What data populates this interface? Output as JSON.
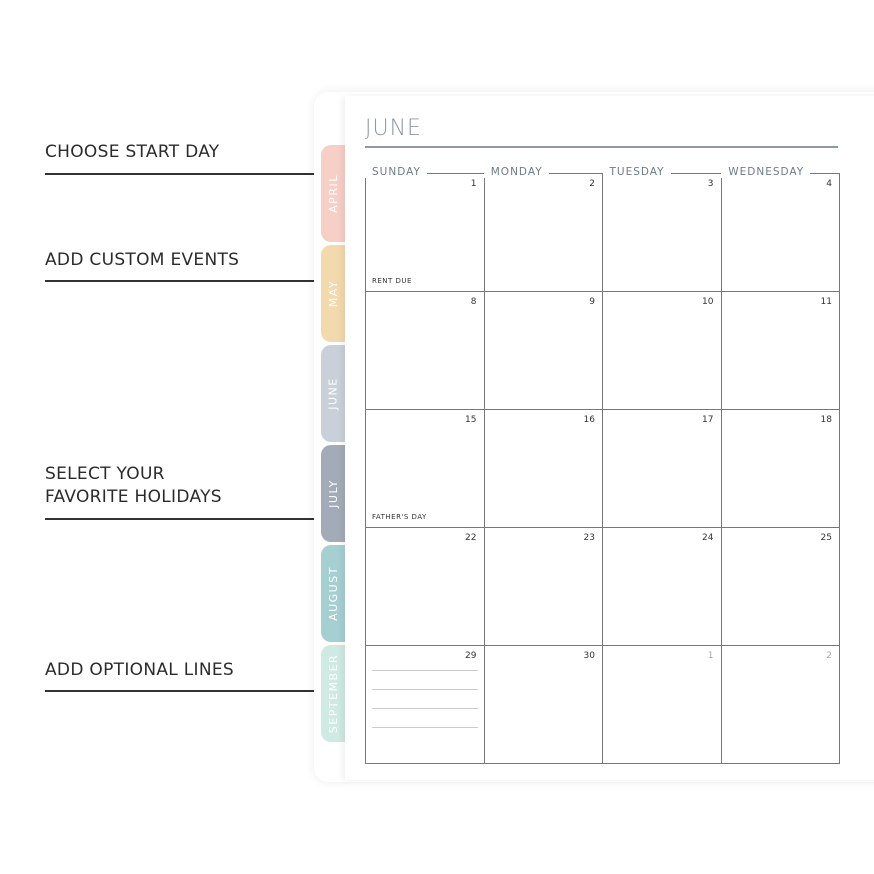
{
  "annotations": [
    {
      "label": "CHOOSE START DAY"
    },
    {
      "label": "ADD CUSTOM EVENTS"
    },
    {
      "label": "SELECT YOUR\nFAVORITE HOLIDAYS",
      "line1": "SELECT YOUR",
      "line2": "FAVORITE HOLIDAYS"
    },
    {
      "label": "ADD OPTIONAL LINES"
    }
  ],
  "tabs": [
    {
      "label": "APRIL",
      "color": "#f6cfc7"
    },
    {
      "label": "MAY",
      "color": "#f3d9ae"
    },
    {
      "label": "JUNE",
      "color": "#c9d0da"
    },
    {
      "label": "JULY",
      "color": "#a3abb8"
    },
    {
      "label": "AUGUST",
      "color": "#a6cfd2"
    },
    {
      "label": "SEPTEMBER",
      "color": "#cfe9e3"
    }
  ],
  "calendar": {
    "month": "JUNE",
    "days": [
      "SUNDAY",
      "MONDAY",
      "TUESDAY",
      "WEDNESDAY"
    ],
    "weeks": [
      [
        {
          "n": "1",
          "event": "RENT DUE"
        },
        {
          "n": "2"
        },
        {
          "n": "3"
        },
        {
          "n": "4"
        }
      ],
      [
        {
          "n": "8"
        },
        {
          "n": "9"
        },
        {
          "n": "10"
        },
        {
          "n": "11"
        }
      ],
      [
        {
          "n": "15",
          "event": "FATHER'S DAY"
        },
        {
          "n": "16"
        },
        {
          "n": "17"
        },
        {
          "n": "18"
        }
      ],
      [
        {
          "n": "22"
        },
        {
          "n": "23"
        },
        {
          "n": "24"
        },
        {
          "n": "25"
        }
      ],
      [
        {
          "n": "29",
          "lines": 4
        },
        {
          "n": "30"
        },
        {
          "n": "1",
          "muted": true
        },
        {
          "n": "2",
          "muted": true
        }
      ]
    ]
  }
}
